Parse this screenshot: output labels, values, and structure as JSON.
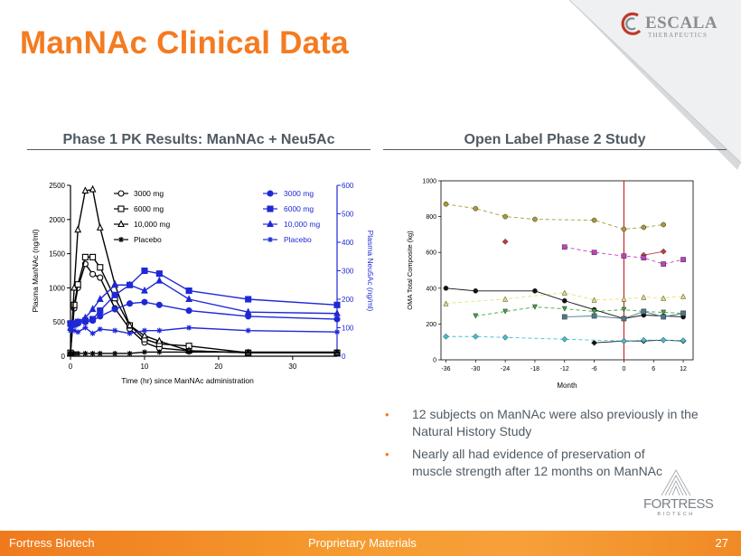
{
  "slide": {
    "title": "ManNAc Clinical Data",
    "logo_name": "ESCALA",
    "logo_sub": "THERAPEUTICS",
    "left_heading": "Phase 1 PK Results: ManNAc + Neu5Ac",
    "right_heading": "Open Label Phase 2 Study",
    "bullets": [
      "12 subjects on ManNAc were also previously in the Natural History Study",
      "Nearly all had evidence of preservation of muscle strength after 12 months on ManNAc"
    ],
    "fortress_name": "FORTRESS",
    "fortress_sub": "BIOTECH",
    "footer_left": "Fortress Biotech",
    "footer_center": "Proprietary Materials",
    "footer_page": "27",
    "colors": {
      "orange": "#f47b20",
      "gray_text": "#505a63",
      "blue_series": "#1f28d6"
    }
  },
  "chart_data": [
    {
      "type": "line",
      "xlabel": "Time (hr) since ManNAc administration",
      "ylabel": "Plasma ManNAc (ng/ml)",
      "y2label": "Plasma Neu5Ac (ng/ml)",
      "xlim": [
        0,
        36
      ],
      "ylim": [
        0,
        2500
      ],
      "y2lim": [
        0,
        600
      ],
      "x_ticks": [
        "0",
        "10",
        "20",
        "30"
      ],
      "y_ticks": [
        "0",
        "500",
        "1000",
        "1500",
        "2000",
        "2500"
      ],
      "y2_ticks": [
        "0",
        "100",
        "200",
        "300",
        "400",
        "500",
        "600"
      ],
      "legend_left": [
        "3000 mg",
        "6000 mg",
        "10,000 mg",
        "Placebo"
      ],
      "legend_right": [
        "3000 mg",
        "6000 mg",
        "10,000 mg",
        "Placebo"
      ],
      "series": [
        {
          "name": "3000 mg",
          "axis": "left",
          "marker": "circle-open",
          "x": [
            0,
            0.5,
            1,
            2,
            3,
            4,
            6,
            8,
            10,
            12,
            16,
            24,
            36
          ],
          "y": [
            50,
            700,
            1000,
            1350,
            1200,
            1150,
            700,
            400,
            200,
            120,
            80,
            50,
            50
          ]
        },
        {
          "name": "6000 mg",
          "axis": "left",
          "marker": "square-open",
          "x": [
            0,
            0.5,
            1,
            2,
            3,
            4,
            6,
            8,
            10,
            12,
            16,
            24,
            36
          ],
          "y": [
            50,
            750,
            1050,
            1450,
            1450,
            1300,
            850,
            450,
            250,
            180,
            150,
            50,
            50
          ]
        },
        {
          "name": "10,000 mg",
          "axis": "left",
          "marker": "triangle-open",
          "x": [
            0,
            0.5,
            1,
            2,
            3,
            4,
            6,
            8,
            10,
            12,
            16,
            24,
            36
          ],
          "y": [
            50,
            1000,
            1850,
            2420,
            2440,
            1880,
            1050,
            450,
            300,
            220,
            80,
            50,
            50
          ]
        },
        {
          "name": "Placebo",
          "axis": "left",
          "marker": "star",
          "x": [
            0,
            0.5,
            1,
            2,
            3,
            4,
            6,
            8,
            10,
            12,
            16,
            24,
            36
          ],
          "y": [
            40,
            40,
            40,
            40,
            40,
            40,
            40,
            40,
            60,
            60,
            60,
            60,
            60
          ]
        },
        {
          "name": "3000 mg",
          "axis": "right",
          "marker": "circle-filled",
          "x": [
            0,
            0.5,
            1,
            2,
            3,
            4,
            6,
            8,
            10,
            12,
            16,
            24,
            36
          ],
          "y": [
            110,
            110,
            115,
            120,
            125,
            140,
            165,
            185,
            190,
            180,
            160,
            140,
            130
          ]
        },
        {
          "name": "6000 mg",
          "axis": "right",
          "marker": "square-filled",
          "x": [
            0,
            0.5,
            1,
            2,
            3,
            4,
            6,
            8,
            10,
            12,
            16,
            24,
            36
          ],
          "y": [
            115,
            115,
            120,
            125,
            130,
            160,
            215,
            250,
            300,
            290,
            230,
            200,
            180
          ]
        },
        {
          "name": "10,000 mg",
          "axis": "right",
          "marker": "triangle-filled",
          "x": [
            0,
            0.5,
            1,
            2,
            3,
            4,
            6,
            8,
            10,
            12,
            16,
            24,
            36
          ],
          "y": [
            100,
            110,
            120,
            135,
            165,
            200,
            250,
            250,
            230,
            265,
            200,
            155,
            150
          ]
        },
        {
          "name": "Placebo",
          "axis": "right",
          "marker": "star-filled",
          "x": [
            0,
            0.5,
            1,
            2,
            3,
            4,
            6,
            8,
            10,
            12,
            16,
            24,
            36
          ],
          "y": [
            90,
            90,
            85,
            100,
            80,
            95,
            90,
            80,
            90,
            90,
            100,
            90,
            85
          ]
        }
      ]
    },
    {
      "type": "line",
      "xlabel": "Month",
      "ylabel": "OMA Total Composite (kg)",
      "xlim": [
        -37,
        14
      ],
      "ylim": [
        0,
        1000
      ],
      "x_ticks": [
        "-36",
        "-30",
        "-24",
        "-18",
        "-12",
        "-6",
        "0",
        "6",
        "12"
      ],
      "y_ticks": [
        "0",
        "200",
        "400",
        "600",
        "800",
        "1000"
      ],
      "treatment_start_x": 0,
      "series": [
        {
          "color": "#a89a35",
          "marker": "circle",
          "dashed": true,
          "x": [
            -36,
            -30,
            -24,
            -18,
            -6,
            0,
            4,
            8
          ],
          "y": [
            870,
            845,
            800,
            785,
            780,
            730,
            740,
            755
          ]
        },
        {
          "color": "#c03c3c",
          "marker": "diamond",
          "dashed": false,
          "x": [
            -24
          ],
          "y": [
            660
          ]
        },
        {
          "color": "#c03c3c",
          "marker": "diamond",
          "dashed": false,
          "x": [
            4,
            8
          ],
          "y": [
            585,
            605
          ]
        },
        {
          "color": "#c040c0",
          "marker": "square",
          "dashed": true,
          "x": [
            -12,
            -6,
            0,
            4,
            8,
            12
          ],
          "y": [
            630,
            600,
            580,
            570,
            535,
            560
          ]
        },
        {
          "color": "#111111",
          "marker": "circle",
          "dashed": false,
          "x": [
            -36,
            -30,
            -18,
            -12,
            -6,
            0,
            4,
            8,
            12
          ],
          "y": [
            400,
            385,
            385,
            330,
            280,
            230,
            250,
            245,
            240
          ]
        },
        {
          "color": "#e8e070",
          "marker": "triangle",
          "dashed": true,
          "x": [
            -36,
            -24,
            -12,
            -6,
            0,
            4,
            8,
            12
          ],
          "y": [
            315,
            340,
            375,
            335,
            340,
            350,
            345,
            355
          ]
        },
        {
          "color": "#3aa83a",
          "marker": "triangle-down",
          "dashed": true,
          "x": [
            -30,
            -24,
            -18,
            -12,
            -6,
            0,
            4,
            8,
            12
          ],
          "y": [
            245,
            270,
            295,
            285,
            270,
            280,
            270,
            265,
            260
          ]
        },
        {
          "color": "#4a7a8a",
          "marker": "square",
          "dashed": false,
          "x": [
            -12,
            -6,
            0,
            4,
            8,
            12
          ],
          "y": [
            240,
            245,
            230,
            270,
            240,
            260
          ]
        },
        {
          "color": "#111111",
          "marker": "diamond",
          "dashed": false,
          "x": [
            -6,
            0,
            4,
            8,
            12
          ],
          "y": [
            95,
            105,
            105,
            110,
            105
          ]
        },
        {
          "color": "#40c0d0",
          "marker": "diamond",
          "dashed": true,
          "x": [
            -36,
            -30,
            -24,
            -12,
            0,
            4,
            8,
            12
          ],
          "y": [
            130,
            130,
            125,
            115,
            105,
            110,
            110,
            108
          ]
        }
      ]
    }
  ]
}
